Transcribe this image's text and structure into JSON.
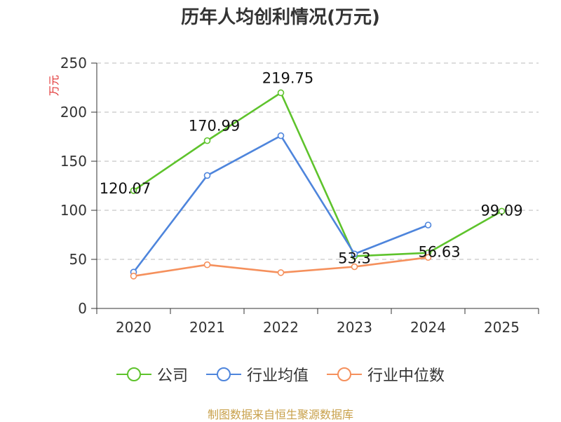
{
  "chart_data": {
    "type": "line",
    "title": "历年人均创利情况(万元)",
    "ylabel": "万元",
    "xlabel": "",
    "categories": [
      "2020",
      "2021",
      "2022",
      "2023",
      "2024",
      "2025"
    ],
    "ylim": [
      0,
      250
    ],
    "yticks": [
      0,
      50,
      100,
      150,
      200,
      250
    ],
    "grid": true,
    "legend_position": "bottom",
    "series": [
      {
        "name": "公司",
        "color": "#5ec32c",
        "values": [
          120.07,
          170.99,
          219.75,
          53.3,
          56.63,
          99.09
        ],
        "labels": [
          "120.07",
          "170.99",
          "219.75",
          "53.3",
          "56.63",
          "99.09"
        ]
      },
      {
        "name": "行业均值",
        "color": "#4e85dc",
        "values": [
          37,
          135.5,
          176,
          55.5,
          85,
          null
        ]
      },
      {
        "name": "行业中位数",
        "color": "#f5905c",
        "values": [
          33,
          44.5,
          36.5,
          42.5,
          52,
          null
        ]
      }
    ]
  },
  "source": "制图数据来自恒生聚源数据库"
}
